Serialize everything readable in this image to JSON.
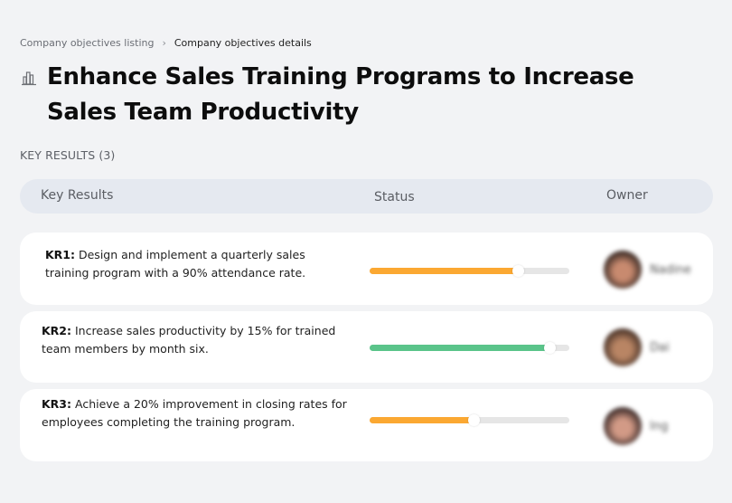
{
  "breadcrumb": {
    "items": [
      {
        "label": "Company objectives listing"
      },
      {
        "label": "Company objectives details"
      }
    ],
    "separator": "›"
  },
  "objective": {
    "icon": "building-chart-icon",
    "title": "Enhance Sales Training Programs to Increase Sales Team Productivity"
  },
  "key_results_section": {
    "label": "KEY RESULTS (3)",
    "count": 3
  },
  "table": {
    "columns": [
      "Key Results",
      "Status",
      "Owner"
    ]
  },
  "key_results": [
    {
      "id": "KR1:",
      "text": " Design and implement a quarterly sales training program with a 90% attendance rate.",
      "progress": 74,
      "color": "#fba832",
      "owner": {
        "name": "Nadine",
        "avatar_colors": [
          "#3a2a24",
          "#c88a6f"
        ]
      }
    },
    {
      "id": "KR2:",
      "text": " Increase sales productivity by 15% for trained team members by month six.",
      "progress": 90,
      "color": "#5ac48a",
      "owner": {
        "name": "Dai",
        "avatar_colors": [
          "#4a3328",
          "#b98564"
        ]
      }
    },
    {
      "id": "KR3:",
      "text": " Achieve a 20% improvement in closing rates for employees completing the training program.",
      "progress": 52,
      "color": "#fba832",
      "owner": {
        "name": "Ing",
        "avatar_colors": [
          "#3b2a28",
          "#d29a86"
        ]
      }
    }
  ],
  "colors": {
    "background": "#f2f3f5",
    "header_bg": "#e5e9f0",
    "card_bg": "#ffffff",
    "track": "#e6e6e6"
  }
}
